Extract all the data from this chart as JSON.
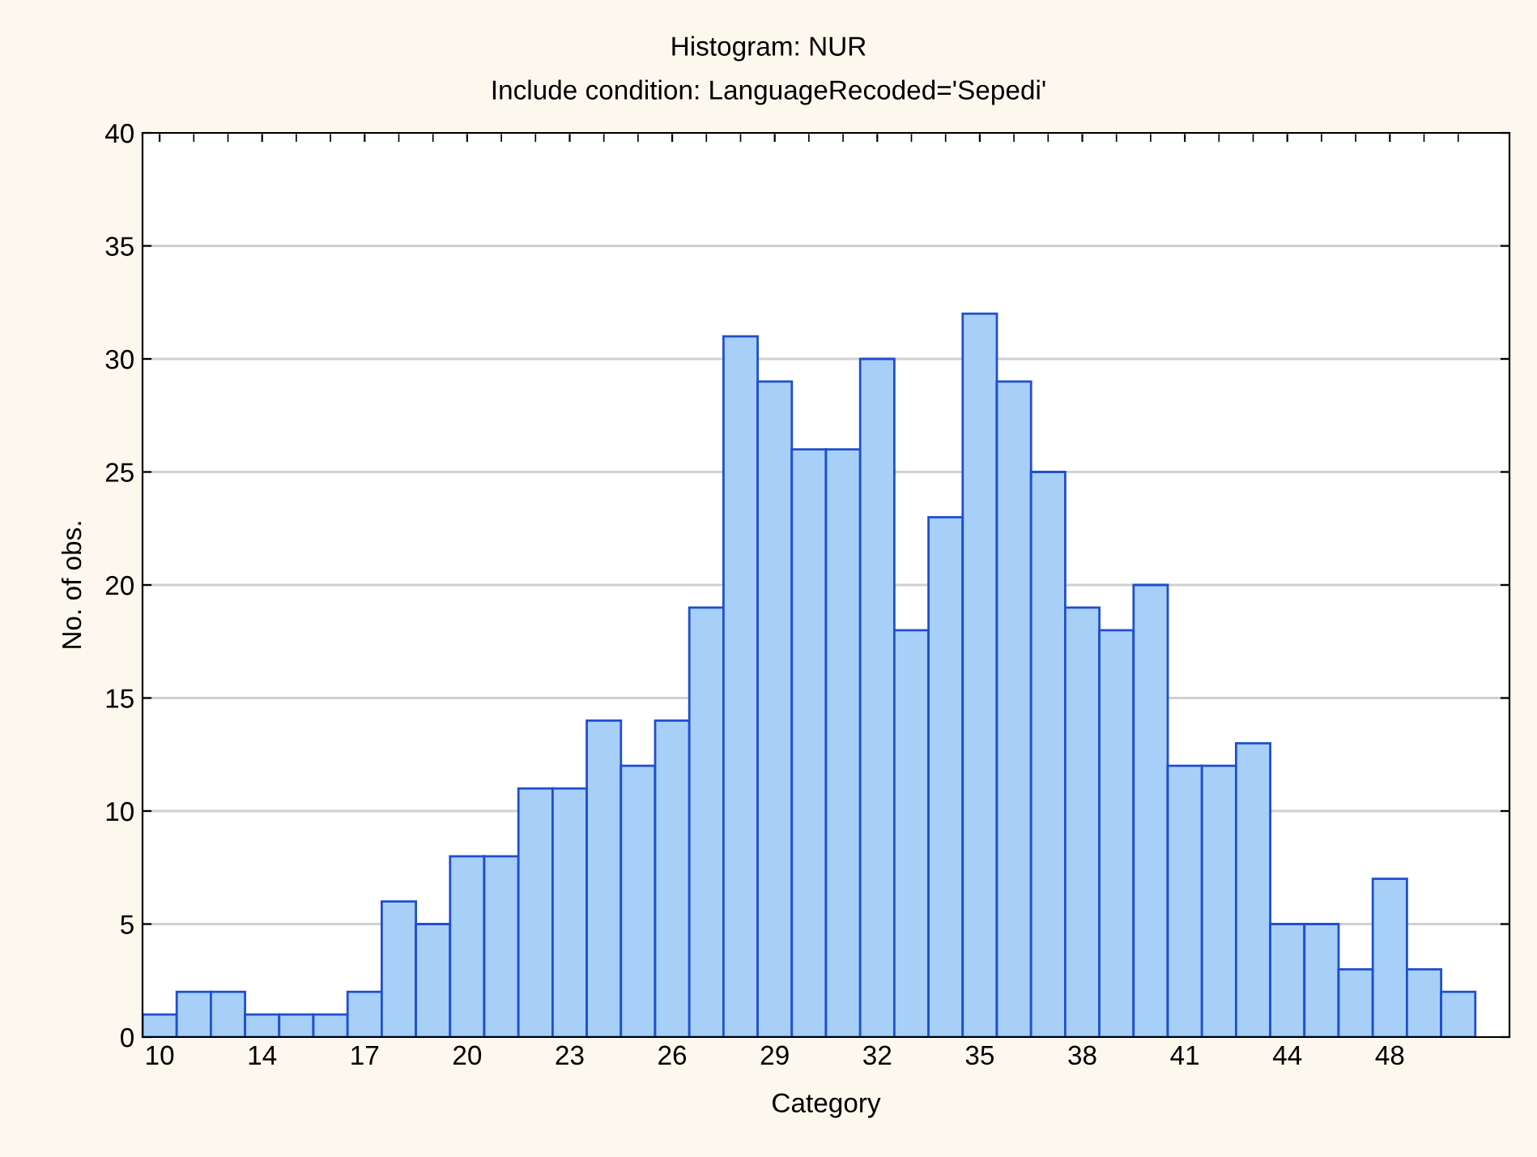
{
  "chart_data": {
    "type": "bar",
    "title": "Histogram: NUR",
    "subtitle": "Include condition: LanguageRecoded='Sepedi'",
    "xlabel": "Category",
    "ylabel": "No. of obs.",
    "categories": [
      "10",
      null,
      null,
      "14",
      null,
      null,
      "17",
      null,
      null,
      "20",
      null,
      null,
      "23",
      null,
      null,
      "26",
      null,
      null,
      "29",
      null,
      null,
      "32",
      null,
      null,
      "35",
      null,
      null,
      "38",
      null,
      null,
      "41",
      null,
      null,
      "44",
      null,
      null,
      "48",
      null,
      null
    ],
    "values": [
      1,
      2,
      2,
      1,
      1,
      1,
      2,
      6,
      5,
      8,
      8,
      11,
      11,
      14,
      12,
      14,
      19,
      31,
      29,
      26,
      26,
      30,
      18,
      23,
      32,
      29,
      25,
      19,
      18,
      20,
      12,
      12,
      13,
      5,
      5,
      3,
      7,
      3,
      2
    ],
    "color": "#a8cff7",
    "ylim": [
      0,
      40
    ],
    "yticks": [
      0,
      5,
      10,
      15,
      20,
      25,
      30,
      35,
      40
    ],
    "grid": "y"
  }
}
